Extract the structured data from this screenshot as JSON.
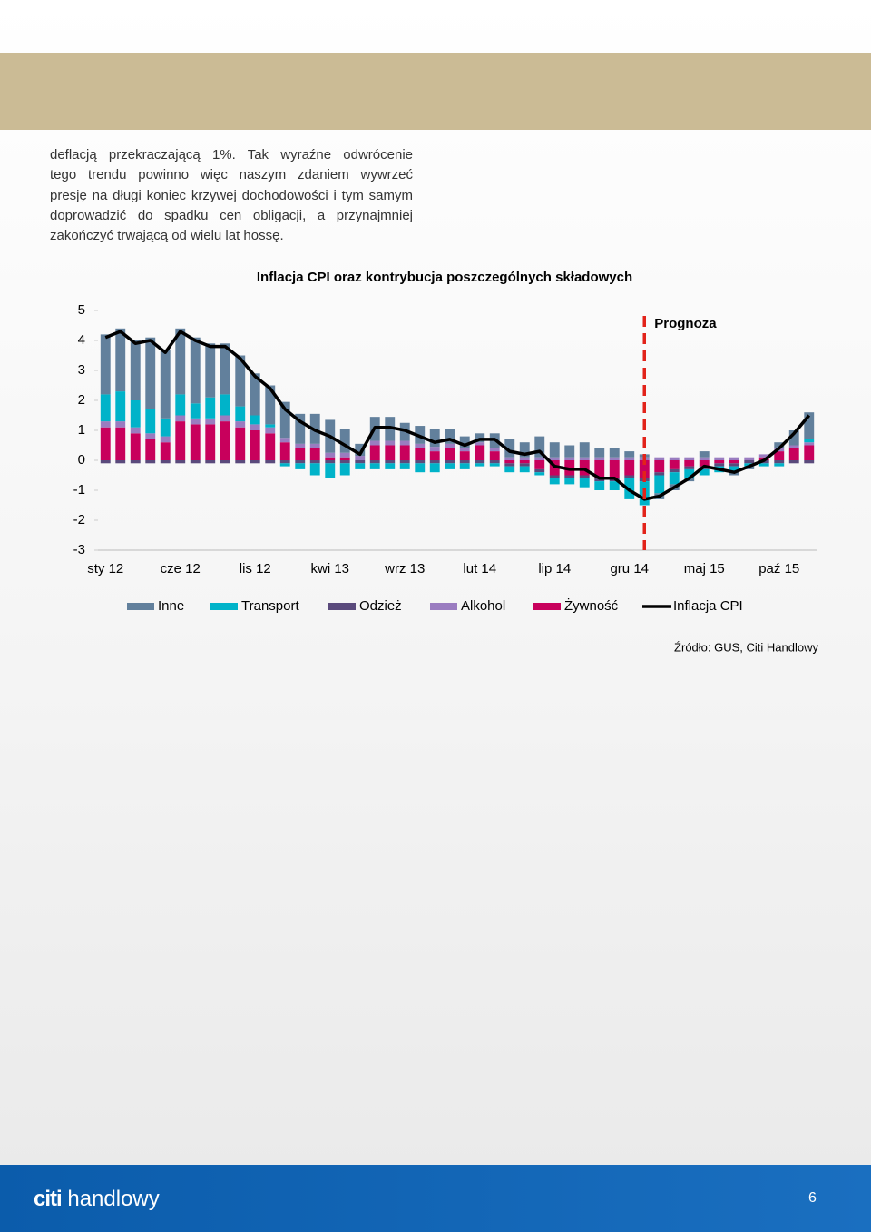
{
  "body": {
    "lines": [
      "deflacją przekraczającą 1%. Tak wyraźne odwrócenie",
      "tego trendu powinno więc naszym zdaniem wywrzeć",
      "presję na długi koniec krzywej dochodowości i tym samym",
      "doprowadzić do spadku cen obligacji, a przynajmniej",
      "zakończyć trwającą od wielu lat hossę."
    ]
  },
  "chart_data": {
    "type": "bar",
    "title": "Inflacja CPI oraz kontrybucja poszczególnych składowych",
    "categories": [
      "sty 12",
      null,
      null,
      null,
      null,
      "cze 12",
      null,
      null,
      null,
      null,
      "lis 12",
      null,
      null,
      null,
      null,
      "kwi 13",
      null,
      null,
      null,
      null,
      "wrz 13",
      null,
      null,
      null,
      null,
      "lut 14",
      null,
      null,
      null,
      null,
      "lip 14",
      null,
      null,
      null,
      null,
      "gru 14",
      null,
      null,
      null,
      null,
      "maj 15",
      null,
      null,
      null,
      null,
      "paź 15",
      null,
      null
    ],
    "series": [
      {
        "name": "Inne",
        "color": "#62809c",
        "values": [
          2.0,
          2.1,
          2.0,
          2.4,
          2.3,
          2.2,
          2.2,
          1.8,
          1.7,
          1.7,
          1.4,
          1.3,
          1.2,
          1.0,
          1.0,
          1.1,
          0.8,
          0.4,
          0.8,
          0.8,
          0.6,
          0.6,
          0.6,
          0.5,
          0.4,
          0.3,
          0.5,
          0.6,
          0.5,
          0.7,
          0.5,
          0.4,
          0.5,
          0.3,
          0.3,
          0.2,
          0.1,
          -0.2,
          -0.2,
          -0.1,
          0.2,
          0.0,
          -0.1,
          -0.1,
          0.0,
          0.2,
          0.5,
          0.9
        ]
      },
      {
        "name": "Transport",
        "color": "#00b3c9",
        "values": [
          0.9,
          1.0,
          0.9,
          0.8,
          0.6,
          0.7,
          0.5,
          0.7,
          0.7,
          0.5,
          0.3,
          0.1,
          -0.1,
          -0.2,
          -0.4,
          -0.5,
          -0.4,
          -0.2,
          -0.2,
          -0.2,
          -0.2,
          -0.3,
          -0.3,
          -0.2,
          -0.2,
          -0.1,
          -0.1,
          -0.2,
          -0.2,
          -0.1,
          -0.2,
          -0.2,
          -0.3,
          -0.3,
          -0.3,
          -0.7,
          -0.8,
          -0.6,
          -0.4,
          -0.3,
          -0.2,
          -0.2,
          -0.2,
          -0.1,
          -0.1,
          -0.1,
          0.0,
          0.1
        ]
      },
      {
        "name": "Odzież",
        "color": "#5a4a7c",
        "values": [
          -0.1,
          -0.1,
          -0.1,
          -0.1,
          -0.1,
          -0.1,
          -0.1,
          -0.1,
          -0.1,
          -0.1,
          -0.1,
          -0.1,
          -0.1,
          -0.1,
          -0.1,
          -0.1,
          -0.1,
          -0.1,
          -0.1,
          -0.1,
          -0.1,
          -0.1,
          -0.1,
          -0.1,
          -0.1,
          -0.1,
          -0.1,
          -0.1,
          -0.1,
          -0.1,
          -0.1,
          -0.1,
          -0.1,
          -0.1,
          -0.1,
          -0.1,
          -0.1,
          -0.1,
          -0.1,
          -0.1,
          -0.1,
          -0.1,
          -0.1,
          -0.1,
          -0.1,
          -0.1,
          -0.1,
          -0.1
        ]
      },
      {
        "name": "Alkohol",
        "color": "#9a7cc0",
        "values": [
          0.2,
          0.2,
          0.2,
          0.2,
          0.2,
          0.2,
          0.2,
          0.2,
          0.2,
          0.2,
          0.2,
          0.2,
          0.15,
          0.15,
          0.15,
          0.15,
          0.15,
          0.15,
          0.15,
          0.15,
          0.15,
          0.15,
          0.15,
          0.15,
          0.1,
          0.1,
          0.1,
          0.1,
          0.1,
          0.1,
          0.1,
          0.1,
          0.1,
          0.1,
          0.1,
          0.1,
          0.1,
          0.1,
          0.1,
          0.1,
          0.1,
          0.1,
          0.1,
          0.1,
          0.1,
          0.1,
          0.1,
          0.1
        ]
      },
      {
        "name": "Żywność",
        "color": "#c8005c",
        "values": [
          1.1,
          1.1,
          0.9,
          0.7,
          0.6,
          1.3,
          1.2,
          1.2,
          1.3,
          1.1,
          1.0,
          0.9,
          0.6,
          0.4,
          0.4,
          0.1,
          0.1,
          0.0,
          0.5,
          0.5,
          0.5,
          0.4,
          0.3,
          0.4,
          0.3,
          0.5,
          0.3,
          -0.1,
          -0.1,
          -0.3,
          -0.5,
          -0.5,
          -0.5,
          -0.6,
          -0.6,
          -0.5,
          -0.6,
          -0.4,
          -0.3,
          -0.2,
          -0.2,
          -0.1,
          -0.1,
          0.0,
          0.1,
          0.3,
          0.4,
          0.5
        ]
      },
      {
        "name": "Inflacja CPI",
        "color": "#000000",
        "type": "line",
        "values": [
          4.1,
          4.3,
          3.9,
          4.0,
          3.6,
          4.3,
          4.0,
          3.8,
          3.8,
          3.4,
          2.8,
          2.4,
          1.7,
          1.3,
          1.0,
          0.8,
          0.5,
          0.2,
          1.1,
          1.1,
          1.0,
          0.8,
          0.6,
          0.7,
          0.5,
          0.7,
          0.7,
          0.3,
          0.2,
          0.3,
          -0.2,
          -0.3,
          -0.3,
          -0.6,
          -0.6,
          -1.0,
          -1.3,
          -1.2,
          -0.9,
          -0.6,
          -0.2,
          -0.3,
          -0.4,
          -0.2,
          0.0,
          0.4,
          0.9,
          1.5
        ]
      }
    ],
    "ylim": [
      -3,
      5
    ],
    "yticks": [
      -3,
      -2,
      -1,
      0,
      1,
      2,
      3,
      4,
      5
    ],
    "grid": false,
    "annotations": [
      {
        "text": "Prognoza",
        "color": "#e2231a",
        "x_index": 36
      }
    ]
  },
  "source": "Źródło: GUS, Citi Handlowy",
  "footer": {
    "brand": "citi",
    "brand_name": "handlowy",
    "page": "6"
  }
}
